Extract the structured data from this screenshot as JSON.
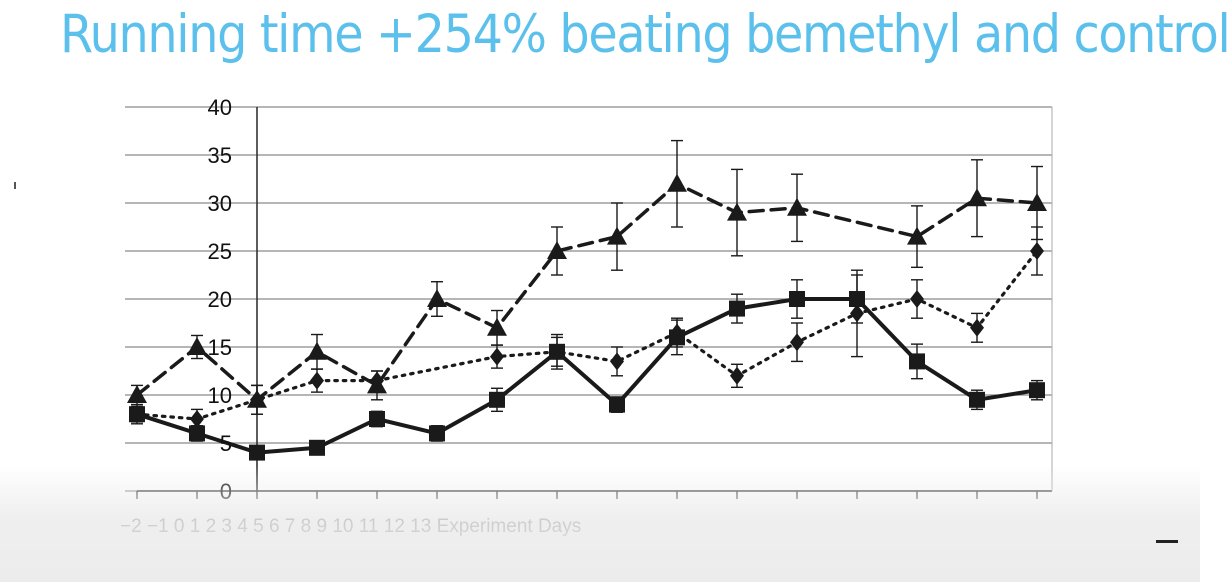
{
  "title": "Running time +254% beating bemethyl and control",
  "colors": {
    "title": "#5bc0ec",
    "line": "#1a1a1a",
    "grid": "#8a8a8a"
  },
  "chart_data": {
    "type": "line",
    "xlabel": "Experiment Days",
    "ylabel": "",
    "ylim": [
      0,
      40
    ],
    "yticks": [
      "0",
      "5",
      "10",
      "15",
      "20",
      "25",
      "30",
      "35",
      "40"
    ],
    "x_tick_labels": [
      "−2",
      "−1",
      "0",
      "1",
      "2",
      "3",
      "4",
      "5",
      "6",
      "7",
      "8",
      "9",
      "10",
      "11",
      "12",
      "13"
    ],
    "grid": "horizontal",
    "legend": "none",
    "series": [
      {
        "marker": "triangle",
        "line_style": "dashed",
        "values": [
          10,
          15,
          9.5,
          14.5,
          11,
          20,
          17,
          25,
          26.5,
          32,
          29,
          29.5,
          26.5,
          30.5,
          30
        ],
        "error": [
          1.0,
          1.2,
          1.5,
          1.8,
          1.5,
          1.8,
          1.8,
          2.5,
          3.5,
          4.5,
          4.5,
          3.5,
          3.2,
          4.0,
          3.8
        ]
      },
      {
        "marker": "diamond",
        "line_style": "dotted",
        "values": [
          8,
          7.5,
          9.5,
          11.5,
          11.5,
          14,
          14.5,
          13.5,
          16.5,
          12,
          15.5,
          18.5,
          20,
          17,
          25
        ],
        "error": [
          1.0,
          1.0,
          1.5,
          1.2,
          1.0,
          1.2,
          1.8,
          1.5,
          1.5,
          1.2,
          2.0,
          4.5,
          2.0,
          1.5,
          2.5
        ]
      },
      {
        "marker": "square",
        "line_style": "solid",
        "values": [
          8,
          6,
          4,
          4.5,
          7.5,
          6,
          9.5,
          14.5,
          9,
          16,
          19,
          20,
          20,
          13.5,
          9.5,
          10.5
        ],
        "error": [
          0.8,
          0.8,
          0.5,
          0.5,
          0.8,
          0.8,
          1.2,
          1.5,
          0.8,
          1.8,
          1.5,
          2.0,
          2.5,
          1.8,
          1.0,
          1.0
        ]
      }
    ]
  }
}
